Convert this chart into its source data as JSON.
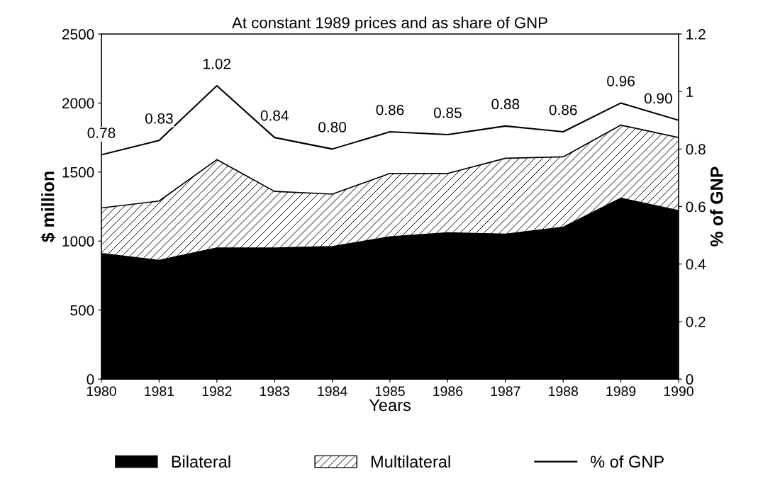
{
  "chart_data": {
    "type": "area",
    "title": "At constant 1989 prices and as share of GNP",
    "xlabel": "Years",
    "ylabel": "$ million",
    "y2label": "% of GNP",
    "categories": [
      "1980",
      "1981",
      "1982",
      "1983",
      "1984",
      "1985",
      "1986",
      "1987",
      "1988",
      "1989",
      "1990"
    ],
    "stacked": true,
    "series": [
      {
        "name": "Bilateral",
        "color": "#000000",
        "values": [
          910,
          860,
          950,
          950,
          960,
          1030,
          1060,
          1050,
          1100,
          1310,
          1220
        ]
      },
      {
        "name": "Multilateral",
        "color": "#ffffff",
        "values": [
          330,
          430,
          640,
          410,
          380,
          460,
          430,
          550,
          510,
          530,
          530
        ]
      },
      {
        "name": "% of GNP",
        "type": "line",
        "axis": "y2",
        "color": "#000000",
        "values": [
          0.78,
          0.83,
          1.02,
          0.84,
          0.8,
          0.86,
          0.85,
          0.88,
          0.86,
          0.96,
          0.9
        ],
        "value_labels": [
          "0.78",
          "0.83",
          "1.02",
          "0.84",
          "0.80",
          "0.86",
          "0.85",
          "0.88",
          "0.86",
          "0.96",
          "0.90"
        ]
      }
    ],
    "ylim": [
      0,
      2500
    ],
    "yticks": [
      0,
      500,
      1000,
      1500,
      2000,
      2500
    ],
    "y2lim": [
      0,
      1.2
    ],
    "y2ticks": [
      0,
      {
        "value": 0.2,
        "label": "0.2"
      },
      {
        "value": 0.4,
        "label": "0.4"
      },
      {
        "value": 0.6,
        "label": "0.6"
      },
      {
        "value": 0.8,
        "label": "0.8"
      },
      1,
      {
        "value": 1.2,
        "label": "1.2"
      }
    ],
    "grid": false,
    "legend": "bottom"
  }
}
